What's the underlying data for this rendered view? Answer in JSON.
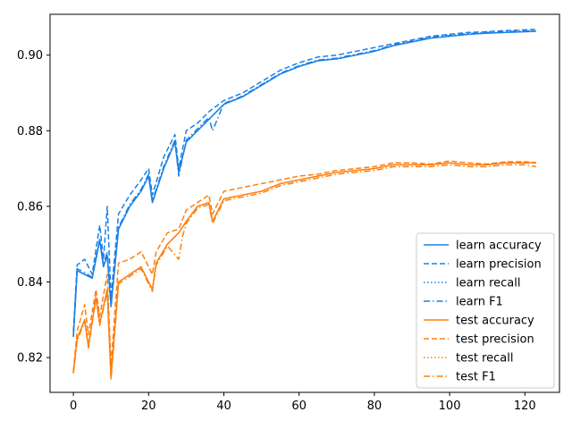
{
  "chart_data": {
    "type": "line",
    "title": "",
    "xlabel": "",
    "ylabel": "",
    "xlim": [
      -6.2,
      129.2
    ],
    "ylim": [
      0.8108,
      0.9108
    ],
    "xticks": [
      0,
      20,
      40,
      60,
      80,
      100,
      120
    ],
    "yticks": [
      0.82,
      0.84,
      0.86,
      0.88,
      0.9
    ],
    "ytick_labels": [
      "0.82",
      "0.84",
      "0.86",
      "0.88",
      "0.90"
    ],
    "grid": false,
    "legend_position": "lower-right",
    "x_range": [
      0,
      123
    ],
    "colors": {
      "learn": "#1a80e6",
      "test": "#ff7f0e"
    },
    "series": [
      {
        "name": "learn accuracy",
        "group": "learn",
        "style": "solid",
        "values": [
          [
            0,
            0.8255
          ],
          [
            1,
            0.843
          ],
          [
            3,
            0.842
          ],
          [
            5,
            0.841
          ],
          [
            7,
            0.851
          ],
          [
            8,
            0.844
          ],
          [
            9,
            0.847
          ],
          [
            10,
            0.8335
          ],
          [
            12,
            0.854
          ],
          [
            15,
            0.86
          ],
          [
            18,
            0.864
          ],
          [
            20,
            0.868
          ],
          [
            21,
            0.861
          ],
          [
            24,
            0.87
          ],
          [
            27,
            0.877
          ],
          [
            28,
            0.869
          ],
          [
            30,
            0.877
          ],
          [
            33,
            0.88
          ],
          [
            36,
            0.883
          ],
          [
            40,
            0.887
          ],
          [
            45,
            0.889
          ],
          [
            50,
            0.892
          ],
          [
            55,
            0.895
          ],
          [
            60,
            0.897
          ],
          [
            65,
            0.8985
          ],
          [
            70,
            0.899
          ],
          [
            75,
            0.9
          ],
          [
            80,
            0.901
          ],
          [
            85,
            0.9025
          ],
          [
            90,
            0.9035
          ],
          [
            95,
            0.9045
          ],
          [
            100,
            0.905
          ],
          [
            105,
            0.9055
          ],
          [
            110,
            0.9058
          ],
          [
            115,
            0.906
          ],
          [
            120,
            0.9062
          ],
          [
            123,
            0.9063
          ]
        ]
      },
      {
        "name": "learn precision",
        "group": "learn",
        "style": "dashed",
        "values": [
          [
            0,
            0.827
          ],
          [
            1,
            0.8445
          ],
          [
            3,
            0.846
          ],
          [
            5,
            0.842
          ],
          [
            7,
            0.855
          ],
          [
            8,
            0.846
          ],
          [
            9,
            0.86
          ],
          [
            10,
            0.836
          ],
          [
            12,
            0.858
          ],
          [
            15,
            0.863
          ],
          [
            18,
            0.867
          ],
          [
            20,
            0.87
          ],
          [
            21,
            0.863
          ],
          [
            24,
            0.873
          ],
          [
            27,
            0.879
          ],
          [
            28,
            0.87
          ],
          [
            30,
            0.88
          ],
          [
            33,
            0.882
          ],
          [
            36,
            0.885
          ],
          [
            40,
            0.888
          ],
          [
            45,
            0.89
          ],
          [
            50,
            0.893
          ],
          [
            55,
            0.896
          ],
          [
            60,
            0.898
          ],
          [
            65,
            0.8995
          ],
          [
            70,
            0.9
          ],
          [
            75,
            0.901
          ],
          [
            80,
            0.902
          ],
          [
            85,
            0.903
          ],
          [
            90,
            0.904
          ],
          [
            95,
            0.905
          ],
          [
            100,
            0.9055
          ],
          [
            105,
            0.906
          ],
          [
            110,
            0.9062
          ],
          [
            115,
            0.9065
          ],
          [
            120,
            0.9067
          ],
          [
            123,
            0.9068
          ]
        ]
      },
      {
        "name": "learn recall",
        "group": "learn",
        "style": "dotted",
        "values": [
          [
            0,
            0.8255
          ],
          [
            1,
            0.843
          ],
          [
            3,
            0.842
          ],
          [
            5,
            0.841
          ],
          [
            7,
            0.851
          ],
          [
            8,
            0.844
          ],
          [
            9,
            0.847
          ],
          [
            10,
            0.8335
          ],
          [
            12,
            0.854
          ],
          [
            15,
            0.86
          ],
          [
            18,
            0.864
          ],
          [
            20,
            0.868
          ],
          [
            21,
            0.861
          ],
          [
            24,
            0.87
          ],
          [
            27,
            0.877
          ],
          [
            28,
            0.869
          ],
          [
            30,
            0.877
          ],
          [
            33,
            0.88
          ],
          [
            36,
            0.883
          ],
          [
            40,
            0.887
          ],
          [
            45,
            0.889
          ],
          [
            50,
            0.892
          ],
          [
            55,
            0.895
          ],
          [
            60,
            0.897
          ],
          [
            65,
            0.8985
          ],
          [
            70,
            0.899
          ],
          [
            75,
            0.9
          ],
          [
            80,
            0.901
          ],
          [
            85,
            0.9025
          ],
          [
            90,
            0.9035
          ],
          [
            95,
            0.9045
          ],
          [
            100,
            0.905
          ],
          [
            105,
            0.9055
          ],
          [
            110,
            0.9058
          ],
          [
            115,
            0.906
          ],
          [
            120,
            0.9062
          ],
          [
            123,
            0.9063
          ]
        ]
      },
      {
        "name": "learn F1",
        "group": "learn",
        "style": "dashdot",
        "values": [
          [
            0,
            0.826
          ],
          [
            1,
            0.8435
          ],
          [
            3,
            0.8425
          ],
          [
            5,
            0.8412
          ],
          [
            7,
            0.8515
          ],
          [
            8,
            0.8445
          ],
          [
            9,
            0.848
          ],
          [
            10,
            0.834
          ],
          [
            12,
            0.8545
          ],
          [
            15,
            0.8605
          ],
          [
            18,
            0.8645
          ],
          [
            20,
            0.8685
          ],
          [
            21,
            0.8615
          ],
          [
            24,
            0.8705
          ],
          [
            27,
            0.8775
          ],
          [
            28,
            0.868
          ],
          [
            30,
            0.8775
          ],
          [
            33,
            0.8805
          ],
          [
            36,
            0.8835
          ],
          [
            37,
            0.88
          ],
          [
            40,
            0.8872
          ],
          [
            45,
            0.8892
          ],
          [
            50,
            0.8922
          ],
          [
            55,
            0.8952
          ],
          [
            60,
            0.8972
          ],
          [
            65,
            0.8987
          ],
          [
            70,
            0.8992
          ],
          [
            75,
            0.9002
          ],
          [
            80,
            0.9012
          ],
          [
            85,
            0.9027
          ],
          [
            90,
            0.9037
          ],
          [
            95,
            0.9047
          ],
          [
            100,
            0.9052
          ],
          [
            105,
            0.9057
          ],
          [
            110,
            0.906
          ],
          [
            115,
            0.9062
          ],
          [
            120,
            0.9064
          ],
          [
            123,
            0.9065
          ]
        ]
      },
      {
        "name": "test accuracy",
        "group": "test",
        "style": "solid",
        "values": [
          [
            0,
            0.816
          ],
          [
            1,
            0.825
          ],
          [
            3,
            0.83
          ],
          [
            4,
            0.823
          ],
          [
            6,
            0.836
          ],
          [
            7,
            0.829
          ],
          [
            9,
            0.838
          ],
          [
            10,
            0.815
          ],
          [
            12,
            0.84
          ],
          [
            15,
            0.842
          ],
          [
            18,
            0.844
          ],
          [
            21,
            0.838
          ],
          [
            22,
            0.845
          ],
          [
            25,
            0.85
          ],
          [
            28,
            0.853
          ],
          [
            30,
            0.856
          ],
          [
            33,
            0.86
          ],
          [
            36,
            0.861
          ],
          [
            37,
            0.856
          ],
          [
            40,
            0.862
          ],
          [
            45,
            0.863
          ],
          [
            50,
            0.864
          ],
          [
            55,
            0.866
          ],
          [
            60,
            0.867
          ],
          [
            65,
            0.868
          ],
          [
            70,
            0.869
          ],
          [
            75,
            0.8695
          ],
          [
            80,
            0.87
          ],
          [
            85,
            0.871
          ],
          [
            90,
            0.871
          ],
          [
            95,
            0.871
          ],
          [
            100,
            0.8715
          ],
          [
            105,
            0.871
          ],
          [
            110,
            0.871
          ],
          [
            115,
            0.8715
          ],
          [
            120,
            0.8715
          ],
          [
            123,
            0.8715
          ]
        ]
      },
      {
        "name": "test precision",
        "group": "test",
        "style": "dashed",
        "values": [
          [
            0,
            0.8165
          ],
          [
            1,
            0.827
          ],
          [
            3,
            0.834
          ],
          [
            4,
            0.826
          ],
          [
            6,
            0.838
          ],
          [
            7,
            0.831
          ],
          [
            9,
            0.842
          ],
          [
            10,
            0.818
          ],
          [
            12,
            0.845
          ],
          [
            15,
            0.846
          ],
          [
            18,
            0.848
          ],
          [
            21,
            0.842
          ],
          [
            22,
            0.848
          ],
          [
            25,
            0.853
          ],
          [
            28,
            0.854
          ],
          [
            30,
            0.859
          ],
          [
            33,
            0.861
          ],
          [
            36,
            0.863
          ],
          [
            37,
            0.858
          ],
          [
            40,
            0.864
          ],
          [
            45,
            0.865
          ],
          [
            50,
            0.866
          ],
          [
            55,
            0.867
          ],
          [
            60,
            0.868
          ],
          [
            65,
            0.8685
          ],
          [
            70,
            0.8695
          ],
          [
            75,
            0.87
          ],
          [
            80,
            0.8705
          ],
          [
            85,
            0.8715
          ],
          [
            90,
            0.8715
          ],
          [
            95,
            0.8712
          ],
          [
            100,
            0.872
          ],
          [
            105,
            0.8715
          ],
          [
            110,
            0.8712
          ],
          [
            115,
            0.8718
          ],
          [
            120,
            0.8718
          ],
          [
            123,
            0.8716
          ]
        ]
      },
      {
        "name": "test recall",
        "group": "test",
        "style": "dotted",
        "values": [
          [
            0,
            0.816
          ],
          [
            1,
            0.825
          ],
          [
            3,
            0.83
          ],
          [
            4,
            0.823
          ],
          [
            6,
            0.836
          ],
          [
            7,
            0.829
          ],
          [
            9,
            0.838
          ],
          [
            10,
            0.815
          ],
          [
            12,
            0.84
          ],
          [
            15,
            0.842
          ],
          [
            18,
            0.844
          ],
          [
            21,
            0.838
          ],
          [
            22,
            0.845
          ],
          [
            25,
            0.85
          ],
          [
            28,
            0.853
          ],
          [
            30,
            0.856
          ],
          [
            33,
            0.86
          ],
          [
            36,
            0.861
          ],
          [
            37,
            0.856
          ],
          [
            40,
            0.862
          ],
          [
            45,
            0.863
          ],
          [
            50,
            0.864
          ],
          [
            55,
            0.866
          ],
          [
            60,
            0.867
          ],
          [
            65,
            0.868
          ],
          [
            70,
            0.869
          ],
          [
            75,
            0.8695
          ],
          [
            80,
            0.87
          ],
          [
            85,
            0.871
          ],
          [
            90,
            0.871
          ],
          [
            95,
            0.871
          ],
          [
            100,
            0.8715
          ],
          [
            105,
            0.871
          ],
          [
            110,
            0.871
          ],
          [
            115,
            0.8715
          ],
          [
            120,
            0.8715
          ],
          [
            123,
            0.8715
          ]
        ]
      },
      {
        "name": "test F1",
        "group": "test",
        "style": "dashdot",
        "values": [
          [
            0,
            0.8158
          ],
          [
            1,
            0.8245
          ],
          [
            3,
            0.8295
          ],
          [
            4,
            0.8225
          ],
          [
            6,
            0.8355
          ],
          [
            7,
            0.8285
          ],
          [
            9,
            0.8375
          ],
          [
            10,
            0.814
          ],
          [
            12,
            0.8395
          ],
          [
            15,
            0.8415
          ],
          [
            18,
            0.8435
          ],
          [
            21,
            0.8375
          ],
          [
            22,
            0.8445
          ],
          [
            25,
            0.8495
          ],
          [
            28,
            0.846
          ],
          [
            29,
            0.852
          ],
          [
            30,
            0.8555
          ],
          [
            33,
            0.8595
          ],
          [
            36,
            0.8605
          ],
          [
            37,
            0.8555
          ],
          [
            40,
            0.8615
          ],
          [
            45,
            0.8625
          ],
          [
            50,
            0.8635
          ],
          [
            55,
            0.8655
          ],
          [
            60,
            0.8665
          ],
          [
            65,
            0.8675
          ],
          [
            70,
            0.8685
          ],
          [
            75,
            0.869
          ],
          [
            80,
            0.8695
          ],
          [
            85,
            0.8705
          ],
          [
            90,
            0.8705
          ],
          [
            95,
            0.8705
          ],
          [
            100,
            0.871
          ],
          [
            105,
            0.8705
          ],
          [
            110,
            0.8705
          ],
          [
            115,
            0.871
          ],
          [
            120,
            0.871
          ],
          [
            123,
            0.8705
          ]
        ]
      }
    ]
  }
}
